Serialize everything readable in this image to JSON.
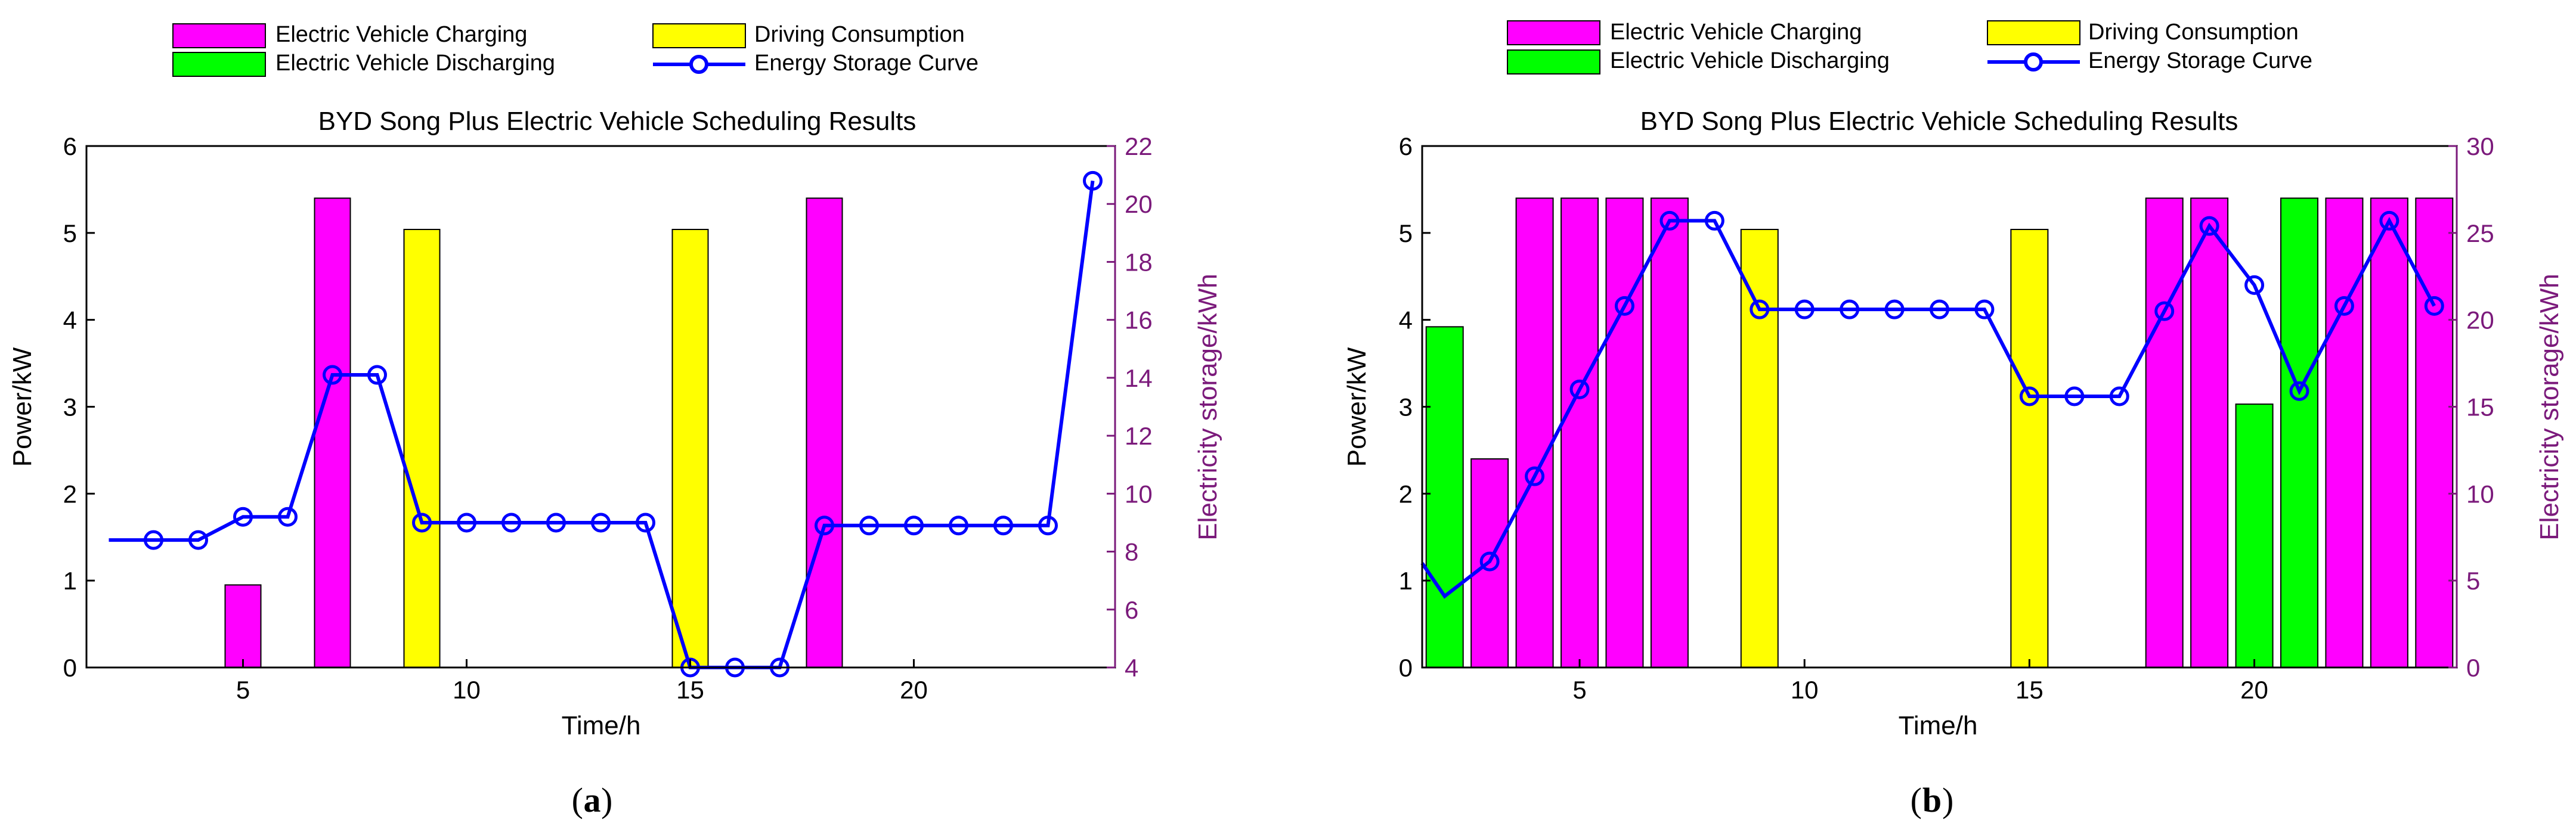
{
  "colors": {
    "charging": "#ff00ff",
    "discharging": "#00ff00",
    "driving": "#ffff00",
    "storage": "#0000ff",
    "right_axis": "#7b1a7b",
    "axis": "#000000"
  },
  "legend": {
    "charging": "Electric Vehicle Charging",
    "driving": "Driving Consumption",
    "discharging": "Electric Vehicle Discharging",
    "storage": "Energy Storage Curve"
  },
  "chart_data": [
    {
      "type": "bar",
      "panel": "a",
      "caption": "a",
      "title": "BYD Song Plus Electric Vehicle Scheduling Results",
      "xlabel": "Time/h",
      "ylabel": "Power/kW",
      "y2label": "Electricity storage/kWh",
      "xlim": [
        1.5,
        24.5
      ],
      "ylim": [
        0,
        6
      ],
      "y2lim": [
        4,
        22
      ],
      "xticks": [
        5,
        10,
        15,
        20
      ],
      "yticks": [
        0,
        1,
        2,
        3,
        4,
        5,
        6
      ],
      "y2ticks": [
        4,
        6,
        8,
        10,
        12,
        14,
        16,
        18,
        20,
        22
      ],
      "series": [
        {
          "name": "Electric Vehicle Charging",
          "key": "charging",
          "x": [
            5,
            7,
            18
          ],
          "values": [
            0.95,
            5.4,
            5.4
          ]
        },
        {
          "name": "Driving Consumption",
          "key": "driving",
          "x": [
            9,
            15
          ],
          "values": [
            5.04,
            5.04
          ]
        },
        {
          "name": "Electric Vehicle Discharging",
          "key": "discharging",
          "x": [],
          "values": []
        }
      ],
      "line": {
        "name": "Energy Storage Curve",
        "x": [
          2,
          3,
          4,
          5,
          6,
          7,
          8,
          9,
          10,
          11,
          12,
          13,
          14,
          15,
          16,
          17,
          18,
          19,
          20,
          21,
          22,
          23,
          24
        ],
        "values": [
          8.4,
          8.4,
          8.4,
          9.2,
          9.2,
          14.1,
          14.1,
          9.0,
          9.0,
          9.0,
          9.0,
          9.0,
          9.0,
          4.0,
          4.0,
          4.0,
          8.9,
          8.9,
          8.9,
          8.9,
          8.9,
          8.9,
          20.8
        ]
      }
    },
    {
      "type": "bar",
      "panel": "b",
      "caption": "b",
      "title": "BYD Song Plus Electric Vehicle Scheduling Results",
      "xlabel": "Time/h",
      "ylabel": "Power/kW",
      "y2label": "Electricity storage/kWh",
      "xlim": [
        1.5,
        24.5
      ],
      "ylim": [
        0,
        6
      ],
      "y2lim": [
        0,
        30
      ],
      "xticks": [
        5,
        10,
        15,
        20
      ],
      "yticks": [
        0,
        1,
        2,
        3,
        4,
        5,
        6
      ],
      "y2ticks": [
        0,
        5,
        10,
        15,
        20,
        25,
        30
      ],
      "series": [
        {
          "name": "Electric Vehicle Charging",
          "key": "charging",
          "x": [
            3,
            4,
            5,
            6,
            7,
            18,
            19,
            22,
            23,
            24
          ],
          "values": [
            2.4,
            5.4,
            5.4,
            5.4,
            5.4,
            5.4,
            5.4,
            5.4,
            5.4,
            5.4
          ]
        },
        {
          "name": "Driving Consumption",
          "key": "driving",
          "x": [
            9,
            15
          ],
          "values": [
            5.04,
            5.04
          ]
        },
        {
          "name": "Electric Vehicle Discharging",
          "key": "discharging",
          "x": [
            2,
            20,
            21
          ],
          "values": [
            3.92,
            3.03,
            5.4
          ]
        }
      ],
      "line": {
        "name": "Energy Storage Curve",
        "x": [
          1.5,
          2,
          3,
          4,
          5,
          6,
          7,
          8,
          9,
          10,
          11,
          12,
          13,
          14,
          15,
          16,
          17,
          18,
          19,
          20,
          21,
          22,
          23,
          24
        ],
        "values": [
          6.0,
          4.1,
          6.1,
          11.0,
          16.0,
          20.8,
          25.7,
          25.7,
          20.6,
          20.6,
          20.6,
          20.6,
          20.6,
          20.6,
          15.6,
          15.6,
          15.6,
          20.5,
          25.4,
          22.0,
          15.9,
          20.8,
          25.7,
          20.8
        ]
      }
    }
  ]
}
